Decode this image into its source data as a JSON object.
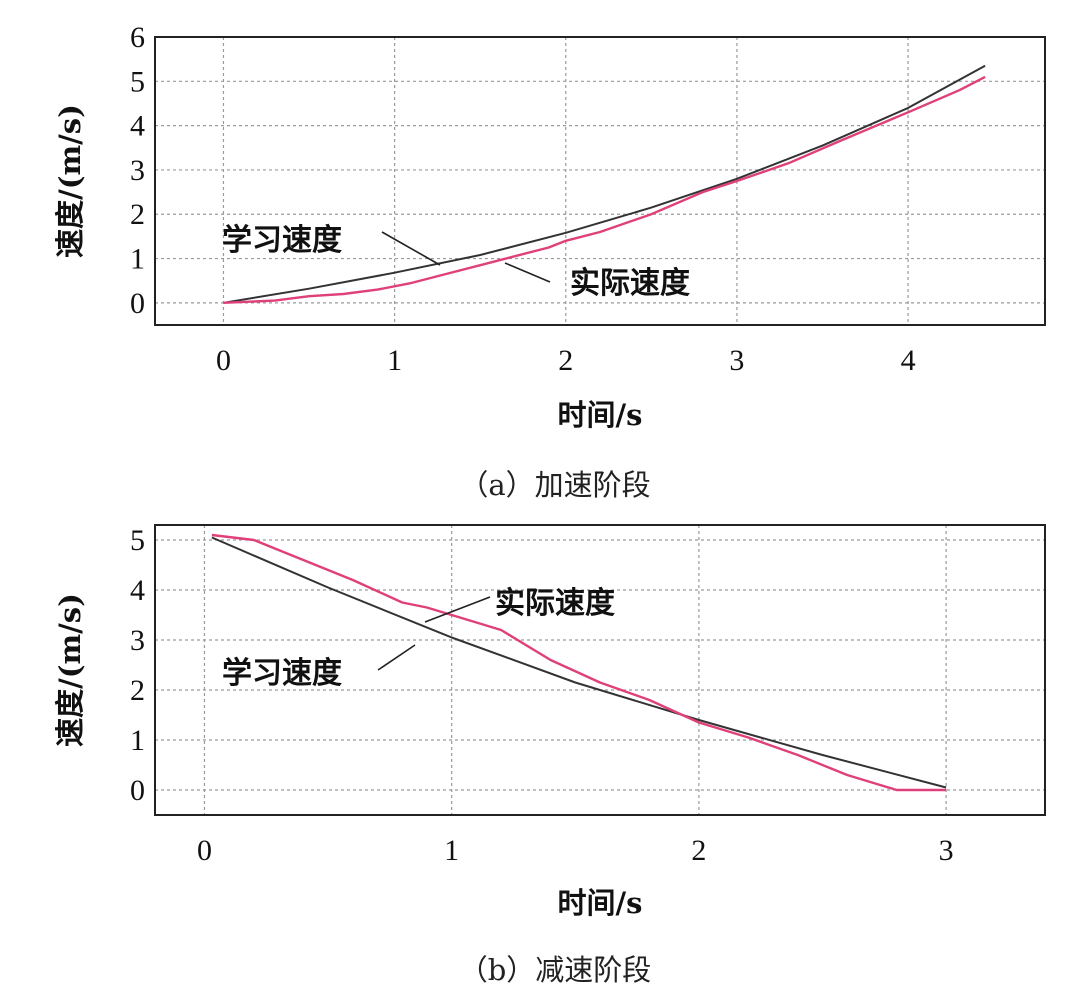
{
  "chart_data": [
    {
      "type": "line",
      "caption": "（a）加速阶段",
      "xlabel": "时间/s",
      "ylabel": "速度/(m/s)",
      "xlim": [
        -0.4,
        4.8
      ],
      "ylim": [
        -0.5,
        6
      ],
      "xticks": [
        0,
        1,
        2,
        3,
        4
      ],
      "yticks": [
        0,
        1,
        2,
        3,
        4,
        5,
        6
      ],
      "grid": true,
      "series": [
        {
          "name": "学习速度",
          "color": "#333333",
          "points": [
            [
              0.0,
              0.0
            ],
            [
              0.5,
              0.32
            ],
            [
              1.0,
              0.68
            ],
            [
              1.5,
              1.08
            ],
            [
              2.0,
              1.58
            ],
            [
              2.5,
              2.15
            ],
            [
              3.0,
              2.8
            ],
            [
              3.5,
              3.55
            ],
            [
              4.0,
              4.4
            ],
            [
              4.45,
              5.35
            ]
          ]
        },
        {
          "name": "实际速度",
          "color": "#e0407a",
          "points": [
            [
              0.0,
              0.0
            ],
            [
              0.3,
              0.05
            ],
            [
              0.5,
              0.15
            ],
            [
              0.7,
              0.2
            ],
            [
              0.9,
              0.3
            ],
            [
              1.1,
              0.45
            ],
            [
              1.3,
              0.65
            ],
            [
              1.5,
              0.85
            ],
            [
              1.7,
              1.05
            ],
            [
              1.9,
              1.25
            ],
            [
              2.0,
              1.4
            ],
            [
              2.2,
              1.6
            ],
            [
              2.5,
              2.0
            ],
            [
              2.8,
              2.5
            ],
            [
              3.0,
              2.75
            ],
            [
              3.3,
              3.15
            ],
            [
              3.6,
              3.65
            ],
            [
              4.0,
              4.3
            ],
            [
              4.3,
              4.8
            ],
            [
              4.45,
              5.1
            ]
          ]
        }
      ],
      "annotations": [
        {
          "text": "学习速度",
          "series": "学习速度"
        },
        {
          "text": "实际速度",
          "series": "实际速度"
        }
      ]
    },
    {
      "type": "line",
      "caption": "（b）减速阶段",
      "xlabel": "时间/s",
      "ylabel": "速度/(m/s)",
      "xlim": [
        -0.2,
        3.4
      ],
      "ylim": [
        -0.5,
        5.3
      ],
      "xticks": [
        0,
        1,
        2,
        3
      ],
      "yticks": [
        0,
        1,
        2,
        3,
        4,
        5
      ],
      "grid": true,
      "series": [
        {
          "name": "学习速度",
          "color": "#333333",
          "points": [
            [
              0.03,
              5.05
            ],
            [
              0.5,
              4.05
            ],
            [
              1.0,
              3.05
            ],
            [
              1.5,
              2.15
            ],
            [
              2.0,
              1.4
            ],
            [
              2.5,
              0.7
            ],
            [
              3.0,
              0.05
            ]
          ]
        },
        {
          "name": "实际速度",
          "color": "#e0407a",
          "points": [
            [
              0.03,
              5.1
            ],
            [
              0.2,
              5.0
            ],
            [
              0.4,
              4.6
            ],
            [
              0.6,
              4.2
            ],
            [
              0.8,
              3.75
            ],
            [
              0.9,
              3.65
            ],
            [
              1.0,
              3.5
            ],
            [
              1.2,
              3.2
            ],
            [
              1.4,
              2.6
            ],
            [
              1.6,
              2.15
            ],
            [
              1.8,
              1.8
            ],
            [
              2.0,
              1.35
            ],
            [
              2.2,
              1.05
            ],
            [
              2.4,
              0.7
            ],
            [
              2.6,
              0.3
            ],
            [
              2.8,
              0.0
            ],
            [
              3.0,
              0.0
            ]
          ]
        }
      ],
      "annotations": [
        {
          "text": "实际速度",
          "series": "实际速度"
        },
        {
          "text": "学习速度",
          "series": "学习速度"
        }
      ]
    }
  ]
}
